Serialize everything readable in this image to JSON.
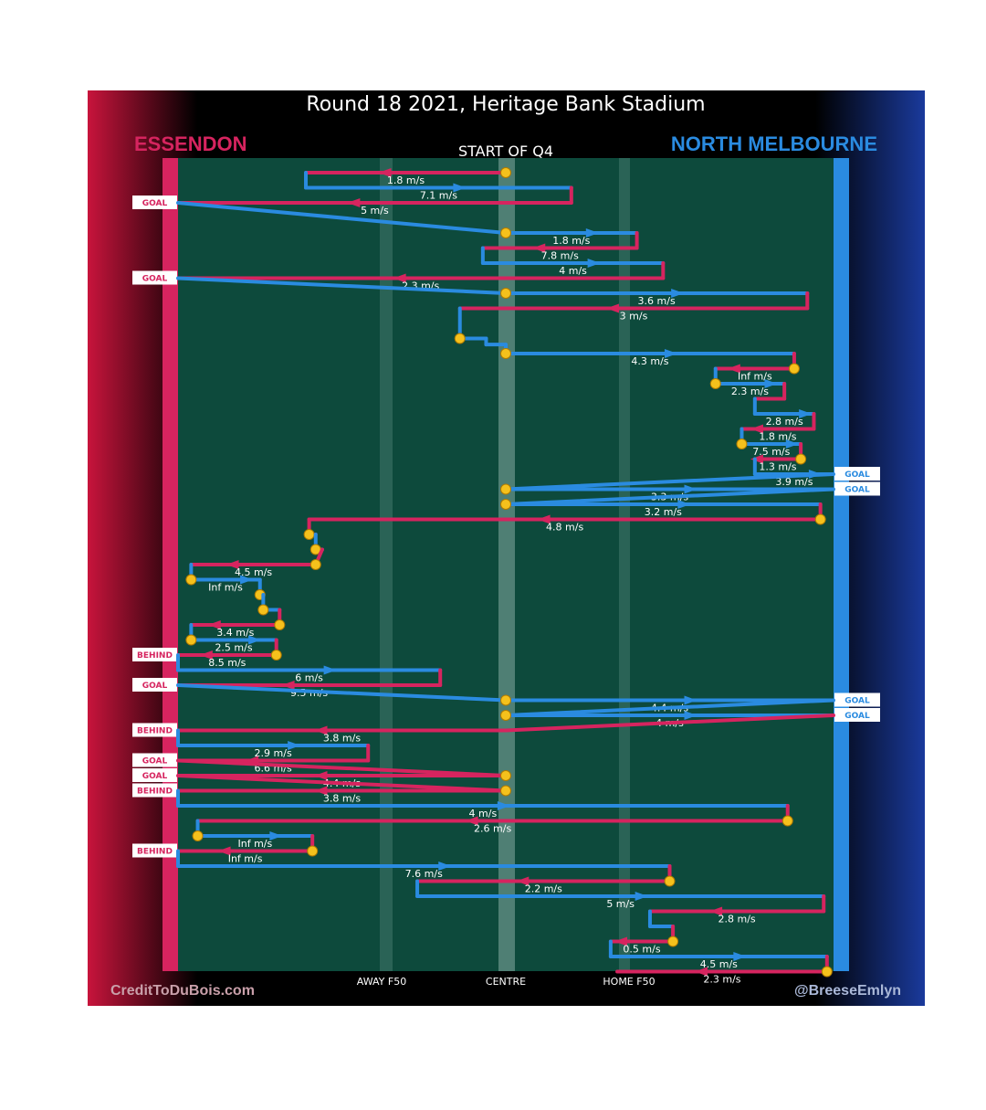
{
  "title": "Round 18 2021, Heritage Bank Stadium",
  "teams": {
    "home": {
      "name": "ESSENDON",
      "color": "#d6245f"
    },
    "away": {
      "name": "NORTH MELBOURNE",
      "color": "#2a8be0"
    }
  },
  "period_label": "START OF Q4",
  "axis_labels": {
    "away_f50": "AWAY F50",
    "centre": "CENTRE",
    "home_f50": "HOME F50"
  },
  "credits": {
    "left": "CreditToDuBois.com",
    "right": "@BreeseEmlyn"
  },
  "colors": {
    "ess": "#d6245f",
    "nm": "#2a8be0",
    "field": "#0d4a3c",
    "ball": "#f5c11c"
  },
  "chart_data": {
    "type": "line",
    "x_range": [
      0,
      1
    ],
    "y_range": [
      0,
      1
    ],
    "chains": [
      {
        "team": "ess",
        "from": 0.5,
        "to": 0.195,
        "label": "1.8 m/s",
        "start_marker": true,
        "row": 0
      },
      {
        "team": "nm",
        "from": 0.195,
        "to": 0.6,
        "label": "7.1 m/s",
        "row": 1
      },
      {
        "team": "ess",
        "from": 0.6,
        "to": 0.0,
        "label": "5 m/s",
        "row": 2,
        "result": "GOAL"
      },
      {
        "team": "nm",
        "from": 0.5,
        "to": 0.7,
        "label": "1.8 m/s",
        "start_marker": true,
        "row": 4
      },
      {
        "team": "ess",
        "from": 0.7,
        "to": 0.465,
        "label": "7.8 m/s",
        "row": 5
      },
      {
        "team": "nm",
        "from": 0.465,
        "to": 0.74,
        "label": "4 m/s",
        "row": 6
      },
      {
        "team": "ess",
        "from": 0.74,
        "to": 0.0,
        "label": "2.3 m/s",
        "row": 7,
        "result": "GOAL"
      },
      {
        "team": "nm",
        "from": 0.5,
        "to": 0.96,
        "label": "3.6 m/s",
        "start_marker": true,
        "row": 8
      },
      {
        "team": "ess",
        "from": 0.96,
        "to": 0.43,
        "label": "3 m/s",
        "row": 9
      },
      {
        "team": "nm",
        "from": 0.43,
        "to": 0.47,
        "label": "",
        "start_marker": true,
        "row": 11
      },
      {
        "team": "nm",
        "from": 0.47,
        "to": 0.5,
        "label": "",
        "row": 11.4
      },
      {
        "team": "nm",
        "from": 0.5,
        "to": 0.94,
        "label": "4.3 m/s",
        "start_marker": true,
        "row": 12
      },
      {
        "team": "ess",
        "from": 0.94,
        "to": 0.82,
        "label": "Inf m/s",
        "start_marker": true,
        "row": 13
      },
      {
        "team": "nm",
        "from": 0.82,
        "to": 0.925,
        "label": "2.3 m/s",
        "start_marker": true,
        "row": 14
      },
      {
        "team": "ess",
        "from": 0.925,
        "to": 0.88,
        "label": "",
        "row": 15
      },
      {
        "team": "nm",
        "from": 0.88,
        "to": 0.97,
        "label": "2.8 m/s",
        "row": 16
      },
      {
        "team": "ess",
        "from": 0.97,
        "to": 0.86,
        "label": "1.8 m/s",
        "row": 17
      },
      {
        "team": "nm",
        "from": 0.86,
        "to": 0.95,
        "label": "7.5 m/s",
        "start_marker": true,
        "row": 18
      },
      {
        "team": "ess",
        "from": 0.95,
        "to": 0.88,
        "label": "1.3 m/s",
        "start_marker": true,
        "row": 19
      },
      {
        "team": "nm",
        "from": 0.88,
        "to": 1.0,
        "label": "3.9 m/s",
        "row": 20,
        "result": "GOAL"
      },
      {
        "team": "nm",
        "from": 0.5,
        "to": 1.0,
        "label": "3.3 m/s",
        "start_marker": true,
        "row": 21,
        "result": "GOAL"
      },
      {
        "team": "nm",
        "from": 0.5,
        "to": 0.98,
        "label": "3.2 m/s",
        "start_marker": true,
        "row": 22
      },
      {
        "team": "ess",
        "from": 0.98,
        "to": 0.2,
        "label": "4.8 m/s",
        "start_marker": true,
        "row": 23
      },
      {
        "team": "ess",
        "from": 0.2,
        "to": 0.21,
        "label": "",
        "start_marker": true,
        "row": 24
      },
      {
        "team": "nm",
        "from": 0.21,
        "to": 0.22,
        "label": "",
        "start_marker": true,
        "row": 25
      },
      {
        "team": "ess",
        "from": 0.21,
        "to": 0.02,
        "label": "4.5 m/s",
        "start_marker": true,
        "row": 26
      },
      {
        "team": "nm",
        "from": 0.02,
        "to": 0.125,
        "label": "Inf m/s",
        "start_marker": true,
        "row": 27
      },
      {
        "team": "nm",
        "from": 0.125,
        "to": 0.13,
        "label": "",
        "start_marker": true,
        "row": 28
      },
      {
        "team": "nm",
        "from": 0.13,
        "to": 0.155,
        "label": "",
        "start_marker": true,
        "row": 29
      },
      {
        "team": "ess",
        "from": 0.155,
        "to": 0.02,
        "label": "3.4 m/s",
        "start_marker": true,
        "row": 30
      },
      {
        "team": "nm",
        "from": 0.02,
        "to": 0.15,
        "label": "2.5 m/s",
        "start_marker": true,
        "row": 31
      },
      {
        "team": "ess",
        "from": 0.15,
        "to": 0.0,
        "label": "8.5 m/s",
        "start_marker": true,
        "row": 32,
        "result": "BEHIND"
      },
      {
        "team": "nm",
        "from": 0.0,
        "to": 0.4,
        "label": "6 m/s",
        "row": 33
      },
      {
        "team": "ess",
        "from": 0.4,
        "to": 0.0,
        "label": "9.5 m/s",
        "row": 34,
        "result": "GOAL"
      },
      {
        "team": "nm",
        "from": 0.5,
        "to": 1.0,
        "label": "4.4 m/s",
        "start_marker": true,
        "row": 35,
        "result": "GOAL"
      },
      {
        "team": "nm",
        "from": 0.5,
        "to": 1.0,
        "label": "4 m/s",
        "start_marker": true,
        "row": 36,
        "result": "GOAL"
      },
      {
        "team": "ess",
        "from": 0.5,
        "to": 0.0,
        "label": "3.8 m/s",
        "row": 37,
        "result": "BEHIND"
      },
      {
        "team": "nm",
        "from": 0.0,
        "to": 0.29,
        "label": "2.9 m/s",
        "row": 38
      },
      {
        "team": "ess",
        "from": 0.29,
        "to": 0.0,
        "label": "6.6 m/s",
        "row": 39,
        "result": "GOAL"
      },
      {
        "team": "ess",
        "from": 0.5,
        "to": 0.0,
        "label": "4.4 m/s",
        "start_marker": true,
        "row": 40,
        "result": "GOAL"
      },
      {
        "team": "ess",
        "from": 0.5,
        "to": 0.0,
        "label": "3.8 m/s",
        "start_marker": true,
        "row": 41,
        "result": "BEHIND"
      },
      {
        "team": "nm",
        "from": 0.0,
        "to": 0.93,
        "label": "4 m/s",
        "row": 42
      },
      {
        "team": "ess",
        "from": 0.93,
        "to": 0.03,
        "label": "2.6 m/s",
        "start_marker": true,
        "row": 43
      },
      {
        "team": "nm",
        "from": 0.03,
        "to": 0.205,
        "label": "Inf m/s",
        "start_marker": true,
        "row": 44
      },
      {
        "team": "ess",
        "from": 0.205,
        "to": 0.0,
        "label": "Inf m/s",
        "start_marker": true,
        "row": 45,
        "result": "BEHIND"
      },
      {
        "team": "nm",
        "from": 0.0,
        "to": 0.75,
        "label": "7.6 m/s",
        "row": 46
      },
      {
        "team": "ess",
        "from": 0.75,
        "to": 0.365,
        "label": "2.2 m/s",
        "start_marker": true,
        "row": 47
      },
      {
        "team": "nm",
        "from": 0.365,
        "to": 0.985,
        "label": "5 m/s",
        "row": 48
      },
      {
        "team": "ess",
        "from": 0.985,
        "to": 0.72,
        "label": "2.8 m/s",
        "row": 49
      },
      {
        "team": "nm",
        "from": 0.72,
        "to": 0.755,
        "label": "",
        "row": 50
      },
      {
        "team": "ess",
        "from": 0.755,
        "to": 0.66,
        "label": "0.5 m/s",
        "start_marker": true,
        "row": 51
      },
      {
        "team": "nm",
        "from": 0.66,
        "to": 0.99,
        "label": "4.5 m/s",
        "row": 52
      },
      {
        "team": "ess",
        "from": 0.99,
        "to": 0.67,
        "label": "2.3 m/s",
        "start_marker": true,
        "row": 53
      }
    ]
  }
}
